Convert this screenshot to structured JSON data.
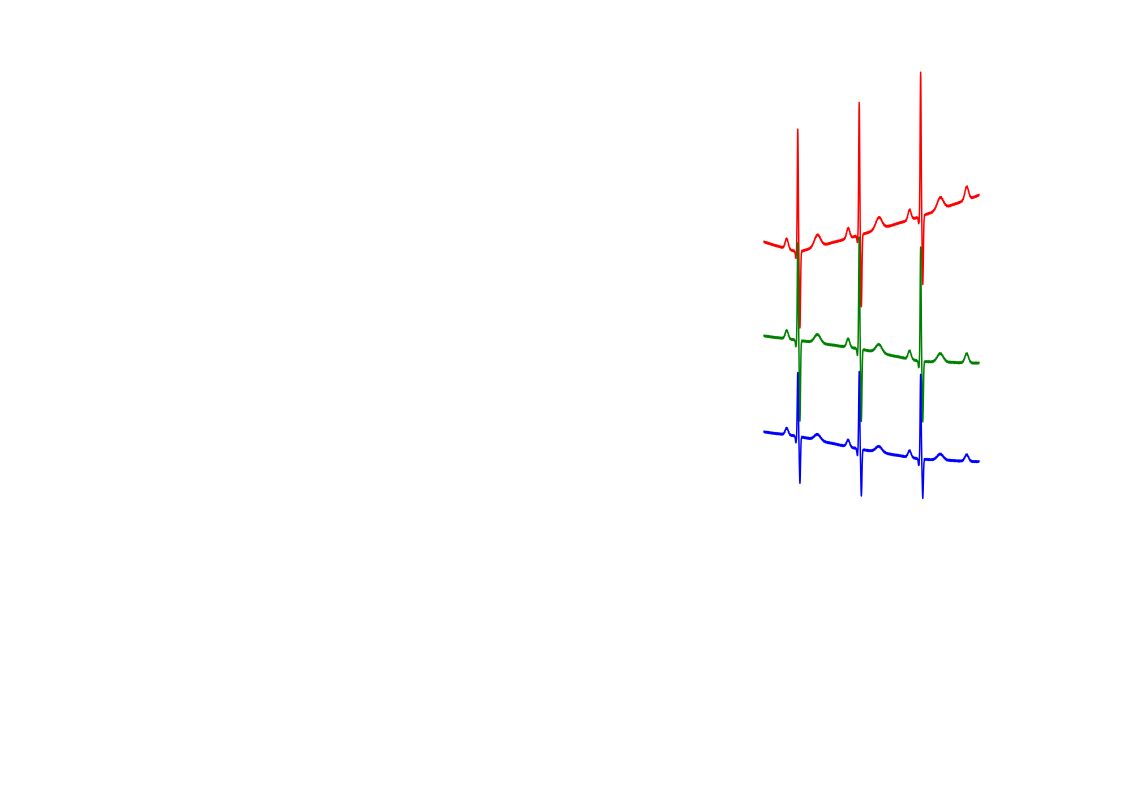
{
  "chart_data": {
    "type": "line",
    "title": "",
    "xlabel": "",
    "ylabel": "",
    "axes_visible": false,
    "grid": false,
    "legend": "none",
    "x_range": [
      0,
      3.5
    ],
    "series": [
      {
        "color": "#ff0000",
        "baseline": [
          [
            0,
            0.0
          ],
          [
            0.55,
            -0.12
          ],
          [
            1.55,
            0.08
          ],
          [
            2.55,
            0.3
          ],
          [
            3.5,
            0.55
          ]
        ],
        "beats": [
          {
            "t": 0.55,
            "r": 1.45,
            "s": -0.9
          },
          {
            "t": 1.55,
            "r": 1.55,
            "s": -0.85
          },
          {
            "t": 2.55,
            "r": 1.7,
            "s": -0.8
          }
        ],
        "p_amp": 0.12,
        "t_amp": 0.14
      },
      {
        "color": "#008000",
        "baseline": [
          [
            0,
            0.0
          ],
          [
            0.55,
            -0.05
          ],
          [
            1.55,
            -0.15
          ],
          [
            2.55,
            -0.3
          ],
          [
            3.5,
            -0.32
          ]
        ],
        "beats": [
          {
            "t": 0.55,
            "r": 1.15,
            "s": -0.95
          },
          {
            "t": 1.55,
            "r": 1.3,
            "s": -0.85
          },
          {
            "t": 2.55,
            "r": 1.35,
            "s": -0.7
          }
        ],
        "p_amp": 0.1,
        "t_amp": 0.1
      },
      {
        "color": "#0000ff",
        "baseline": [
          [
            0,
            0.0
          ],
          [
            0.55,
            -0.05
          ],
          [
            1.55,
            -0.2
          ],
          [
            2.55,
            -0.32
          ],
          [
            3.5,
            -0.35
          ]
        ],
        "beats": [
          {
            "t": 0.55,
            "r": 0.75,
            "s": -0.55
          },
          {
            "t": 1.55,
            "r": 0.9,
            "s": -0.55
          },
          {
            "t": 2.55,
            "r": 1.0,
            "s": -0.45
          }
        ],
        "p_amp": 0.08,
        "t_amp": 0.07
      }
    ]
  }
}
